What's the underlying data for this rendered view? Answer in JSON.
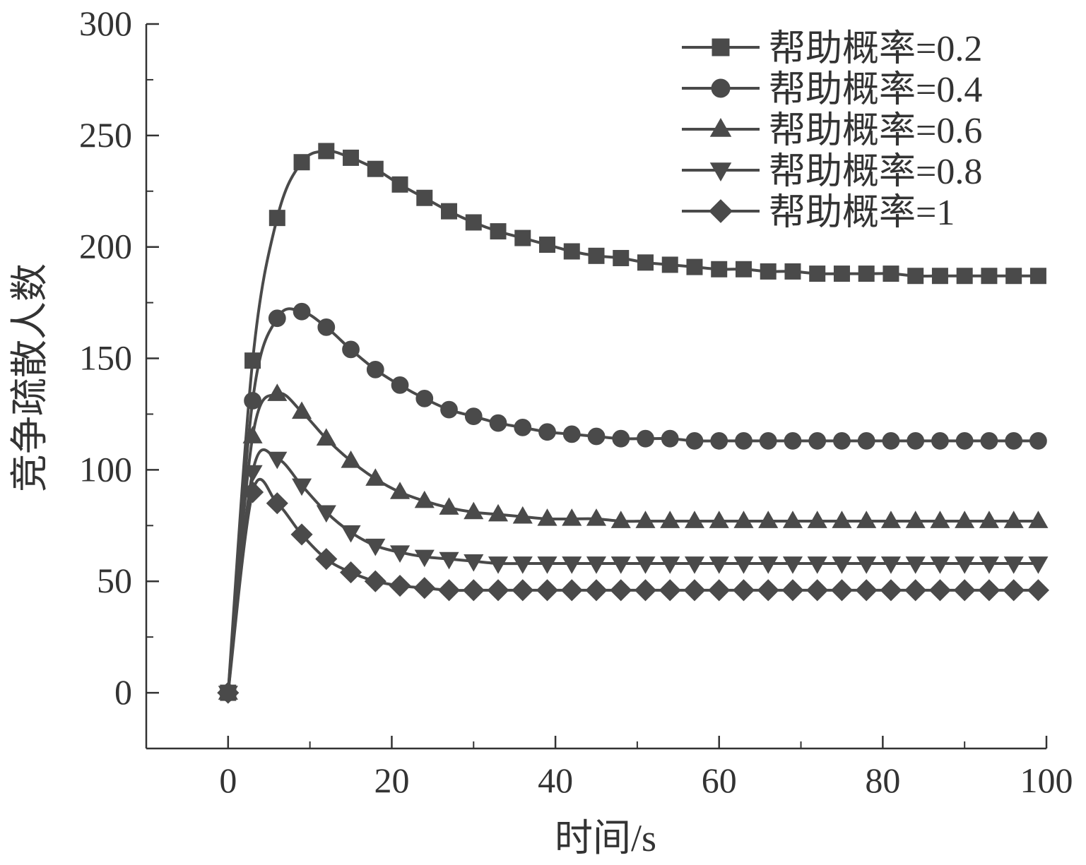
{
  "chart_data": {
    "type": "line",
    "title": "",
    "xlabel": "时间/s",
    "ylabel": "竞争疏散人数",
    "xlim": [
      -10,
      100
    ],
    "ylim": [
      -25,
      300
    ],
    "xticks": [
      0,
      20,
      40,
      60,
      80,
      100
    ],
    "yticks": [
      0,
      50,
      100,
      150,
      200,
      250,
      300
    ],
    "grid": false,
    "legend_position": "top-right",
    "line_color": "#4a4a4a",
    "x": [
      0,
      3,
      6,
      9,
      12,
      15,
      18,
      21,
      24,
      27,
      30,
      33,
      36,
      39,
      42,
      45,
      48,
      51,
      54,
      57,
      60,
      63,
      66,
      69,
      72,
      75,
      78,
      81,
      84,
      87,
      90,
      93,
      96,
      99
    ],
    "series": [
      {
        "name": "帮助概率=0.2",
        "marker": "square",
        "values": [
          0,
          149,
          213,
          238,
          243,
          240,
          235,
          228,
          222,
          216,
          211,
          207,
          204,
          201,
          198,
          196,
          195,
          193,
          192,
          191,
          190,
          190,
          189,
          189,
          188,
          188,
          188,
          188,
          187,
          187,
          187,
          187,
          187,
          187
        ]
      },
      {
        "name": "帮助概率=0.4",
        "marker": "circle",
        "values": [
          0,
          131,
          168,
          171,
          164,
          154,
          145,
          138,
          132,
          127,
          124,
          121,
          119,
          117,
          116,
          115,
          114,
          114,
          114,
          113,
          113,
          113,
          113,
          113,
          113,
          113,
          113,
          113,
          113,
          113,
          113,
          113,
          113,
          113
        ]
      },
      {
        "name": "帮助概率=0.6",
        "marker": "triangle-up",
        "values": [
          0,
          115,
          134,
          126,
          114,
          104,
          96,
          90,
          86,
          83,
          81,
          80,
          79,
          78,
          78,
          78,
          77,
          77,
          77,
          77,
          77,
          77,
          77,
          77,
          77,
          77,
          77,
          77,
          77,
          77,
          77,
          77,
          77,
          77
        ]
      },
      {
        "name": "帮助概率=0.8",
        "marker": "triangle-down",
        "values": [
          0,
          99,
          105,
          93,
          81,
          72,
          66,
          63,
          61,
          60,
          59,
          58,
          58,
          58,
          58,
          58,
          58,
          58,
          58,
          58,
          58,
          58,
          58,
          58,
          58,
          58,
          58,
          58,
          58,
          58,
          58,
          58,
          58,
          58
        ]
      },
      {
        "name": "帮助概率=1",
        "marker": "diamond",
        "values": [
          0,
          90,
          85,
          71,
          60,
          54,
          50,
          48,
          47,
          46,
          46,
          46,
          46,
          46,
          46,
          46,
          46,
          46,
          46,
          46,
          46,
          46,
          46,
          46,
          46,
          46,
          46,
          46,
          46,
          46,
          46,
          46,
          46,
          46
        ]
      }
    ]
  }
}
